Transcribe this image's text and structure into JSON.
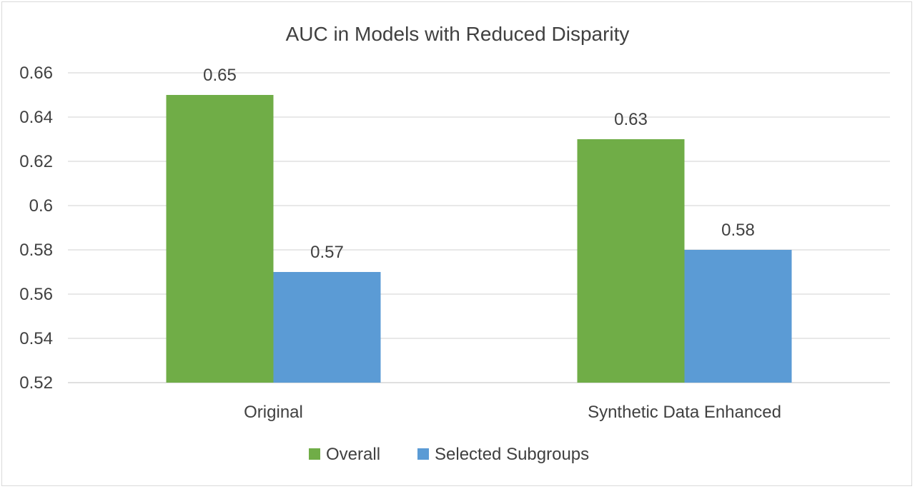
{
  "chart_data": {
    "type": "bar",
    "title": "AUC in Models with Reduced Disparity",
    "xlabel": "",
    "ylabel": "",
    "categories": [
      "Original",
      "Synthetic Data Enhanced"
    ],
    "series": [
      {
        "name": "Overall",
        "values": [
          0.65,
          0.63
        ],
        "color": "#70ad47"
      },
      {
        "name": "Selected Subgroups",
        "values": [
          0.57,
          0.58
        ],
        "color": "#5b9bd5"
      }
    ],
    "data_labels": [
      [
        "0.65",
        "0.63"
      ],
      [
        "0.57",
        "0.58"
      ]
    ],
    "ylim": [
      0.52,
      0.66
    ],
    "yticks": [
      "0.52",
      "0.54",
      "0.56",
      "0.58",
      "0.6",
      "0.62",
      "0.64",
      "0.66"
    ],
    "grid": true,
    "legend": "bottom"
  }
}
